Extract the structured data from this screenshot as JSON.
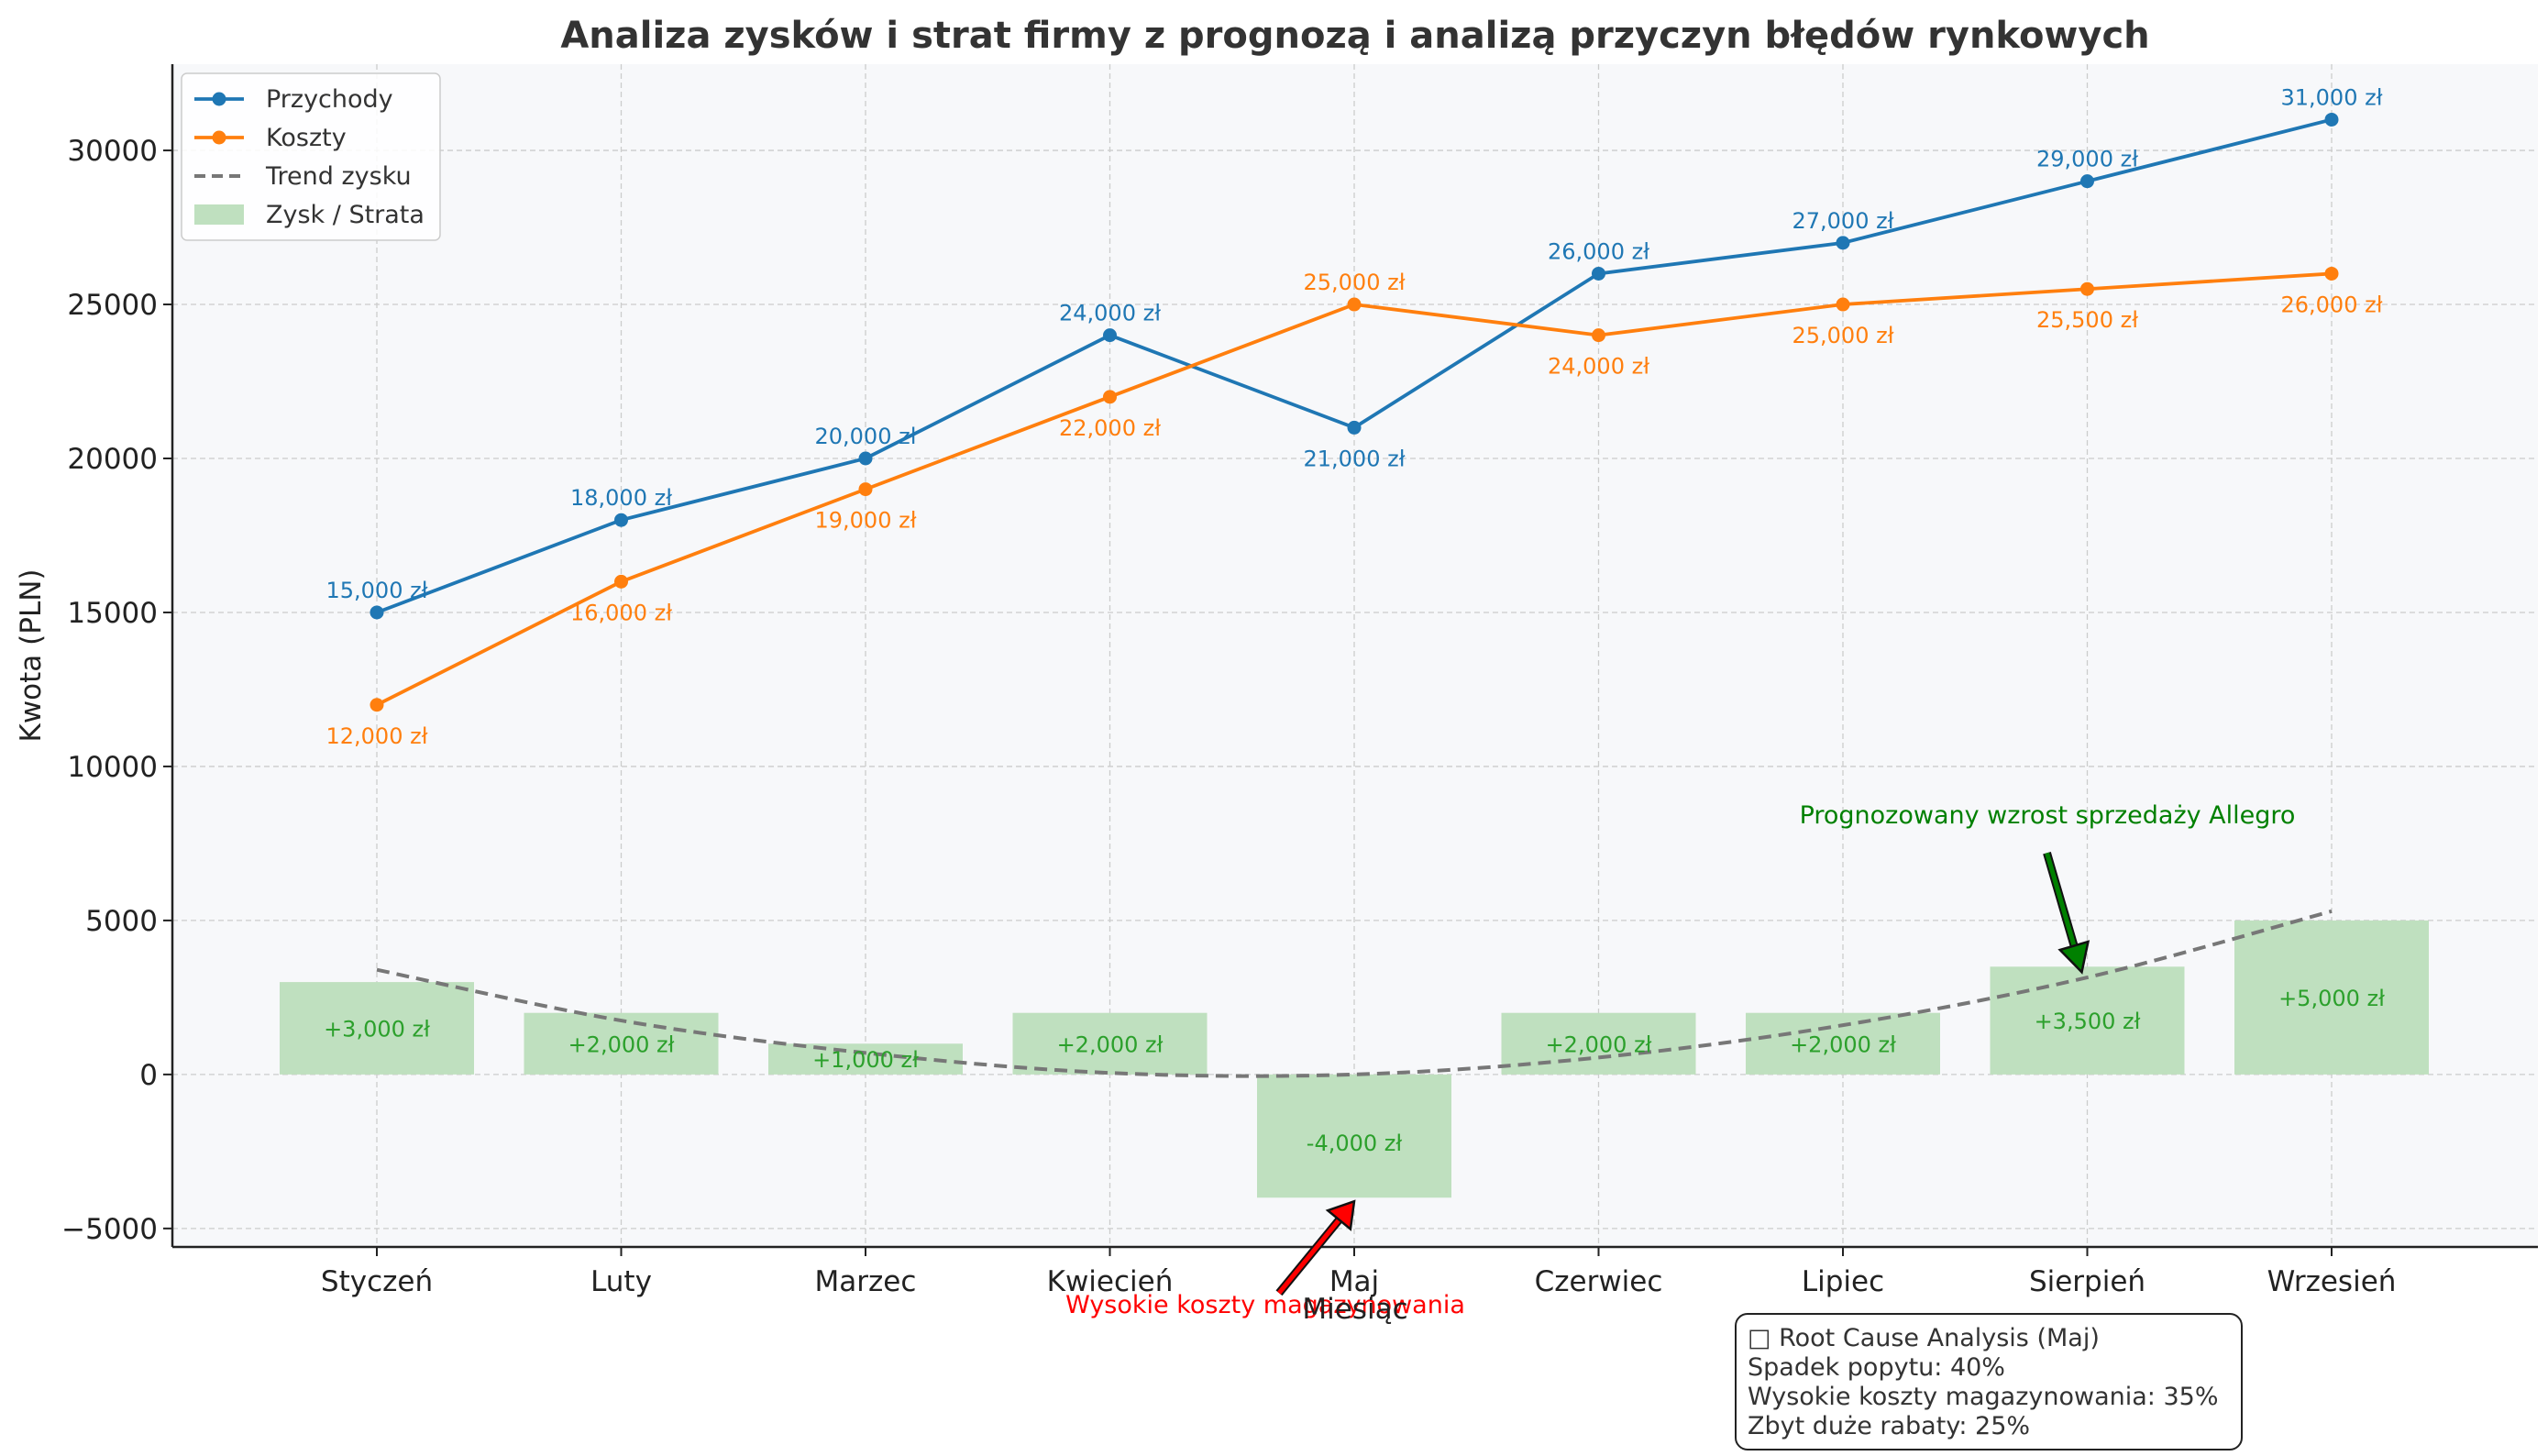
{
  "chart_data": {
    "type": "line",
    "title": "Analiza zysków i strat firmy z prognozą i analizą przyczyn błędów rynkowych",
    "xlabel": "Miesiąc",
    "ylabel": "Kwota (PLN)",
    "categories": [
      "Styczeń",
      "Luty",
      "Marzec",
      "Kwiecień",
      "Maj",
      "Czerwiec",
      "Lipiec",
      "Sierpień",
      "Wrzesień"
    ],
    "ylim": [
      -5600,
      32800
    ],
    "yticks": [
      -5000,
      0,
      5000,
      10000,
      15000,
      20000,
      25000,
      30000
    ],
    "ytick_labels": [
      "−5000",
      "0",
      "5000",
      "10000",
      "15000",
      "20000",
      "25000",
      "30000"
    ],
    "grid": true,
    "legend_position": "top-left",
    "series": [
      {
        "name": "Przychody",
        "kind": "line",
        "color": "#1f77b4",
        "values": [
          15000,
          18000,
          20000,
          24000,
          21000,
          26000,
          27000,
          29000,
          31000
        ],
        "labels": [
          "15,000 zł",
          "18,000 zł",
          "20,000 zł",
          "24,000 zł",
          "21,000 zł",
          "26,000 zł",
          "27,000 zł",
          "29,000 zł",
          "31,000 zł"
        ]
      },
      {
        "name": "Koszty",
        "kind": "line",
        "color": "#ff7f0e",
        "values": [
          12000,
          16000,
          19000,
          22000,
          25000,
          24000,
          25000,
          25500,
          26000
        ],
        "labels": [
          "12,000 zł",
          "16,000 zł",
          "19,000 zł",
          "22,000 zł",
          "25,000 zł",
          "24,000 zł",
          "25,000 zł",
          "25,500 zł",
          "26,000 zł"
        ]
      },
      {
        "name": "Trend zysku",
        "kind": "dashed-line",
        "color": "#777777",
        "values": [
          3400,
          1750,
          700,
          50,
          0,
          550,
          1600,
          3150,
          5300
        ]
      },
      {
        "name": "Zysk / Strata",
        "kind": "bar",
        "color": "#bfe0bf",
        "label_color": "#2ca02c",
        "values": [
          3000,
          2000,
          1000,
          2000,
          -4000,
          2000,
          2000,
          3500,
          5000
        ],
        "labels": [
          "+3,000 zł",
          "+2,000 zł",
          "+1,000 zł",
          "+2,000 zł",
          "-4,000 zł",
          "+2,000 zł",
          "+2,000 zł",
          "+3,500 zł",
          "+5,000 zł"
        ]
      }
    ],
    "annotations": [
      {
        "text": "Wysokie koszty magazynowania",
        "color": "#ff0000",
        "arrow_color": "#ff0000",
        "target_category": "Maj",
        "target_value": -4000
      },
      {
        "text": "Prognozowany wzrost sprzedaży Allegro",
        "color": "#008000",
        "arrow_color": "#008000",
        "target_category": "Sierpień",
        "target_value": 3500
      }
    ],
    "colors": {
      "plot_background": "#f7f8fa",
      "grid": "#cccccc",
      "title": "#333333"
    }
  },
  "rca_box": {
    "lines": [
      "□ Root Cause Analysis (Maj)",
      "Spadek popytu: 40%",
      "Wysokie koszty magazynowania: 35%",
      "Zbyt duże rabaty: 25%"
    ]
  }
}
